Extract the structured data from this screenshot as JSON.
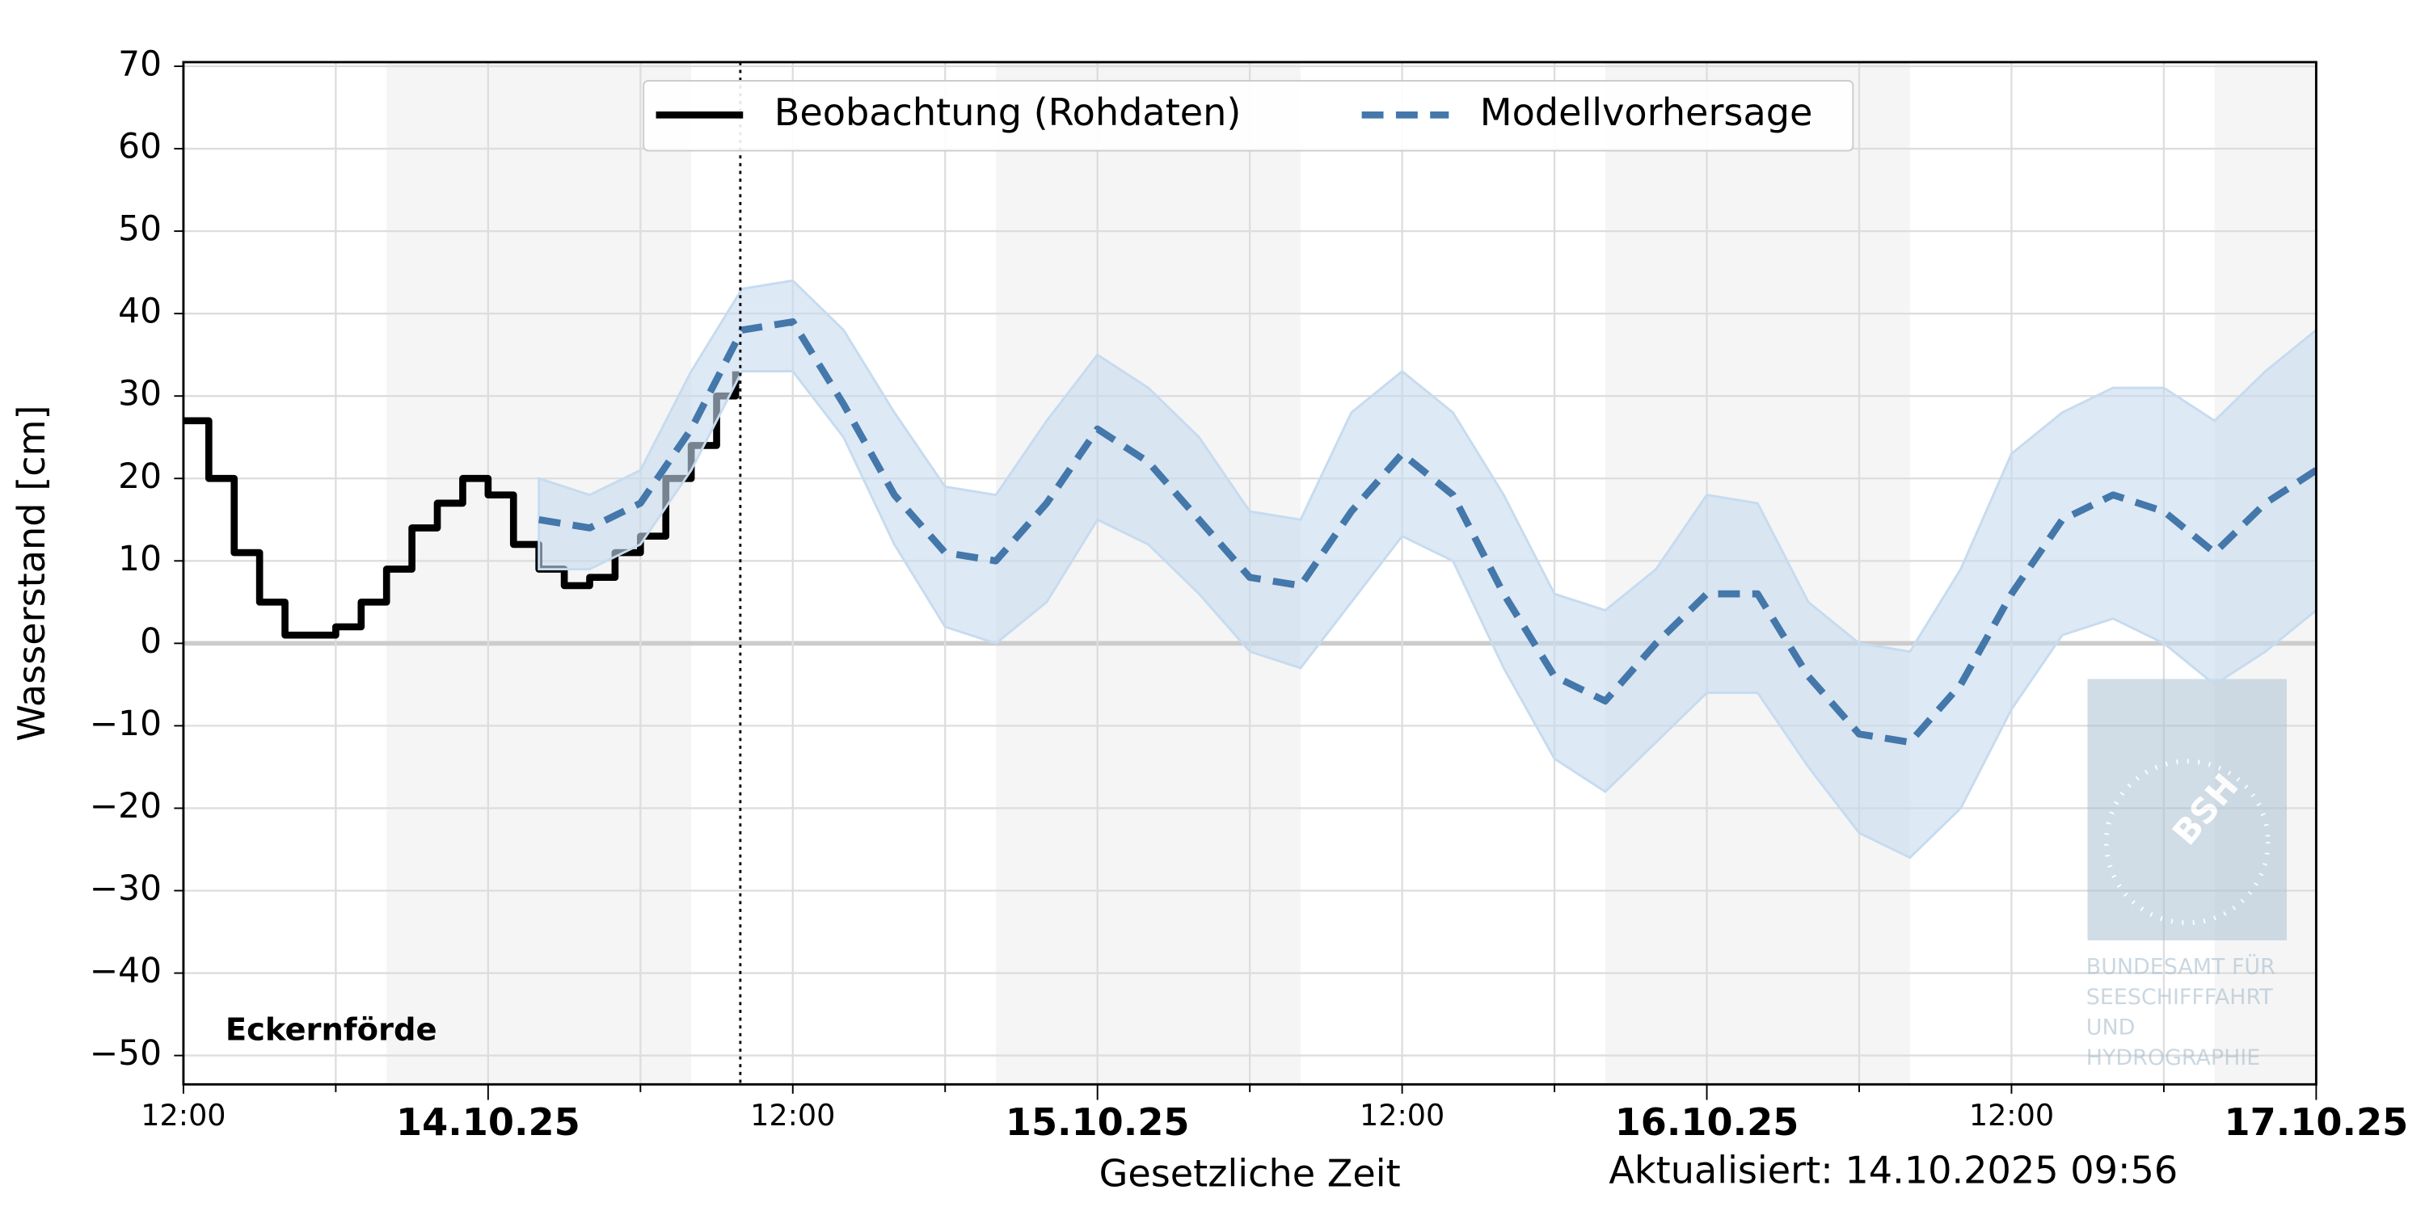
{
  "chart_data": {
    "type": "line",
    "y_label": "Wasserstand [cm]",
    "x_label": "Gesetzliche Zeit",
    "updated": "Aktualisiert: 14.10.2025 09:56",
    "station": "Eckernförde",
    "now": "2025-10-14T09:56",
    "night_bands": [
      [
        "2025-10-13T20:00",
        "2025-10-14T08:00"
      ],
      [
        "2025-10-14T20:00",
        "2025-10-15T08:00"
      ],
      [
        "2025-10-15T20:00",
        "2025-10-16T08:00"
      ],
      [
        "2025-10-16T20:00",
        "2025-10-17T08:00"
      ]
    ],
    "xlim": [
      "2025-10-13T12:00",
      "2025-10-17T00:00"
    ],
    "xticks": [
      {
        "value": "2025-10-13T12:00",
        "label": "12:00"
      },
      {
        "value": "2025-10-14T00:00",
        "label": "14.10.25"
      },
      {
        "value": "2025-10-14T12:00",
        "label": "12:00"
      },
      {
        "value": "2025-10-15T00:00",
        "label": "15.10.25"
      },
      {
        "value": "2025-10-15T12:00",
        "label": "12:00"
      },
      {
        "value": "2025-10-16T00:00",
        "label": "16.10.25"
      },
      {
        "value": "2025-10-16T12:00",
        "label": "12:00"
      },
      {
        "value": "2025-10-17T00:00",
        "label": "17.10.25"
      }
    ],
    "minor_xticks": [
      "2025-10-13T18:00",
      "2025-10-14T06:00",
      "2025-10-14T18:00",
      "2025-10-15T06:00",
      "2025-10-15T18:00",
      "2025-10-16T06:00",
      "2025-10-16T18:00"
    ],
    "ylim": [
      -53.5,
      70.5
    ],
    "yticks": [
      {
        "value": -50,
        "label": "−50"
      },
      {
        "value": -40,
        "label": "−40"
      },
      {
        "value": -30,
        "label": "−30"
      },
      {
        "value": -20,
        "label": "−20"
      },
      {
        "value": -10,
        "label": "−10"
      },
      0,
      10,
      20,
      30,
      40,
      50,
      60,
      70
    ],
    "grid": true,
    "series": [
      {
        "name": "Beobachtung (Rohdaten)",
        "color": "#000000",
        "step": true,
        "x": [
          "2025-10-13T12:00",
          "2025-10-13T13:00",
          "2025-10-13T14:00",
          "2025-10-13T15:00",
          "2025-10-13T16:00",
          "2025-10-13T17:00",
          "2025-10-13T18:00",
          "2025-10-13T19:00",
          "2025-10-13T20:00",
          "2025-10-13T21:00",
          "2025-10-13T22:00",
          "2025-10-13T23:00",
          "2025-10-14T00:00",
          "2025-10-14T01:00",
          "2025-10-14T02:00",
          "2025-10-14T03:00",
          "2025-10-14T04:00",
          "2025-10-14T05:00",
          "2025-10-14T06:00",
          "2025-10-14T07:00",
          "2025-10-14T08:00",
          "2025-10-14T09:00",
          "2025-10-14T09:45"
        ],
        "values": [
          27,
          20,
          11,
          5,
          1,
          1,
          2,
          5,
          9,
          14,
          17,
          20,
          18,
          12,
          9,
          7,
          8,
          11,
          13,
          20,
          24,
          30,
          33
        ]
      },
      {
        "name": "Modellvorhersage",
        "color": "#4477aa",
        "band_color": "#c6dbef",
        "x": [
          "2025-10-14T02:00",
          "2025-10-14T04:00",
          "2025-10-14T06:00",
          "2025-10-14T08:00",
          "2025-10-14T10:00",
          "2025-10-14T12:00",
          "2025-10-14T14:00",
          "2025-10-14T16:00",
          "2025-10-14T18:00",
          "2025-10-14T20:00",
          "2025-10-14T22:00",
          "2025-10-15T00:00",
          "2025-10-15T02:00",
          "2025-10-15T04:00",
          "2025-10-15T06:00",
          "2025-10-15T08:00",
          "2025-10-15T10:00",
          "2025-10-15T12:00",
          "2025-10-15T14:00",
          "2025-10-15T16:00",
          "2025-10-15T18:00",
          "2025-10-15T20:00",
          "2025-10-15T22:00",
          "2025-10-16T00:00",
          "2025-10-16T02:00",
          "2025-10-16T04:00",
          "2025-10-16T06:00",
          "2025-10-16T08:00",
          "2025-10-16T10:00",
          "2025-10-16T12:00",
          "2025-10-16T14:00",
          "2025-10-16T16:00",
          "2025-10-16T18:00",
          "2025-10-16T20:00",
          "2025-10-16T22:00",
          "2025-10-17T00:00"
        ],
        "values": [
          15,
          14,
          17,
          26,
          38,
          39,
          29,
          18,
          11,
          10,
          17,
          26,
          22,
          15,
          8,
          7,
          16,
          23,
          18,
          6,
          -4,
          -7,
          0,
          6,
          6,
          -4,
          -11,
          -12,
          -5,
          6,
          15,
          18,
          16,
          11,
          17,
          21
        ],
        "lower": [
          9,
          9,
          12,
          21,
          33,
          33,
          25,
          12,
          2,
          0,
          5,
          15,
          12,
          6,
          -1,
          -3,
          5,
          13,
          10,
          -3,
          -14,
          -18,
          -12,
          -6,
          -6,
          -15,
          -23,
          -26,
          -20,
          -8,
          1,
          3,
          0,
          -5,
          -1,
          4
        ],
        "upper": [
          20,
          18,
          21,
          33,
          43,
          44,
          38,
          28,
          19,
          18,
          27,
          35,
          31,
          25,
          16,
          15,
          28,
          33,
          28,
          18,
          6,
          4,
          9,
          18,
          17,
          5,
          0,
          -1,
          9,
          23,
          28,
          31,
          31,
          27,
          33,
          38
        ]
      }
    ],
    "watermark": {
      "logo": "BSH",
      "lines": [
        "BUNDESAMT FÜR",
        "SEESCHIFFFAHRT",
        "UND",
        "HYDROGRAPHIE"
      ]
    }
  }
}
